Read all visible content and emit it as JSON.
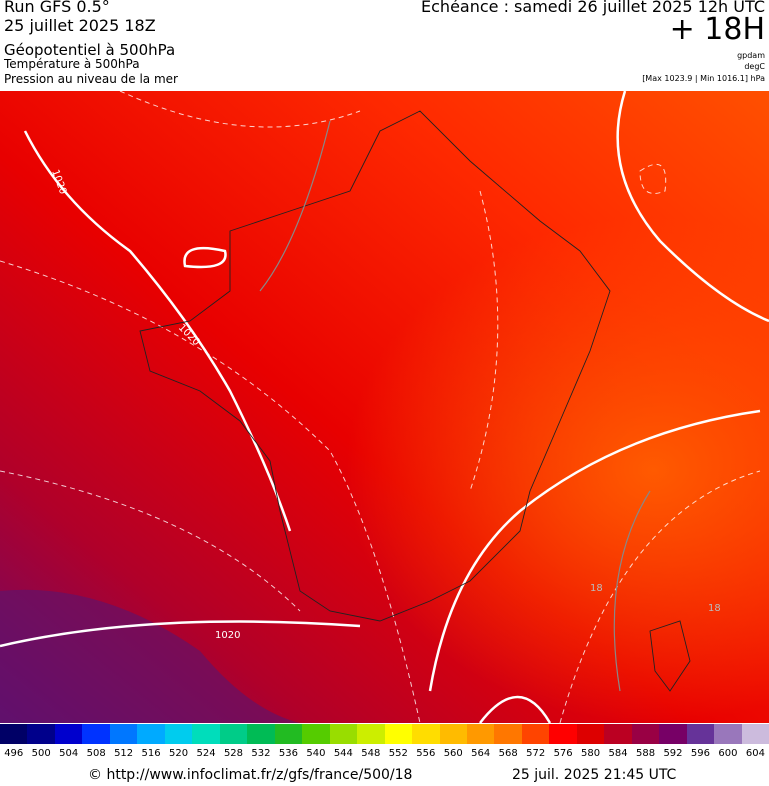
{
  "header": {
    "run": "Run GFS 0.5°",
    "run_date": "25 juillet 2025 18Z",
    "field_main": "Géopotentiel à 500hPa",
    "field_second": "Température à 500hPa",
    "field_third": "Pression au niveau de la mer",
    "valid_time": "Echéance : samedi 26 juillet 2025 12h UTC",
    "lead": "+ 18H",
    "unit_geopotential": "gpdam",
    "unit_temperature": "degC",
    "pressure_range": "[Max 1023.9 | Min 1016.1] hPa"
  },
  "map": {
    "contour_labels": [
      "1020",
      "1020",
      "1020",
      "18",
      "18"
    ]
  },
  "legend": {
    "labels": [
      496,
      500,
      504,
      508,
      512,
      516,
      520,
      524,
      528,
      532,
      536,
      540,
      544,
      548,
      552,
      556,
      560,
      564,
      568,
      572,
      576,
      580,
      584,
      588,
      592,
      596,
      600,
      604
    ],
    "colors": [
      "#000066",
      "#00008b",
      "#0000cd",
      "#0033ff",
      "#0077ff",
      "#00aaff",
      "#00ccee",
      "#00ddbb",
      "#00cc88",
      "#00bb55",
      "#22bb22",
      "#55cc00",
      "#99dd00",
      "#ccee00",
      "#ffff00",
      "#ffdd00",
      "#ffbb00",
      "#ff9900",
      "#ff7700",
      "#ff4400",
      "#ff0000",
      "#dd0000",
      "#bb0022",
      "#990044",
      "#770066",
      "#663399",
      "#9977bb",
      "#ccbbdd"
    ]
  },
  "footer": {
    "source": "© http://www.infoclimat.fr/z/gfs/france/500/18",
    "timestamp": "25 juil. 2025 21:45 UTC"
  }
}
